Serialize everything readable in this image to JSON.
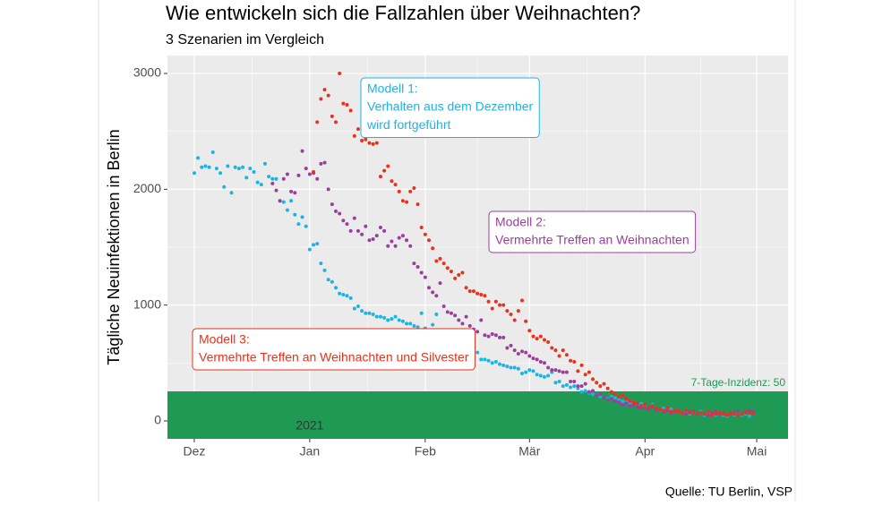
{
  "chart_data": {
    "type": "scatter",
    "title": "Wie entwickeln sich die Fallzahlen über Weihnachten?",
    "subtitle": "3 Szenarien im Vergleich",
    "y_label": "Tägliche Neuinfektionen in Berlin",
    "year_label": "2021",
    "source": "Quelle: TU Berlin, VSP",
    "grid": true,
    "minor_grid": true,
    "xlim": [
      -7.2,
      159.4
    ],
    "ylim": [
      -155,
      3155
    ],
    "yticks": [
      0,
      1000,
      2000,
      3000
    ],
    "xticks": [
      {
        "value": 0,
        "label": "Dez"
      },
      {
        "value": 31,
        "label": "Jan"
      },
      {
        "value": 62,
        "label": "Feb"
      },
      {
        "value": 90,
        "label": "Mär"
      },
      {
        "value": 121,
        "label": "Apr"
      },
      {
        "value": 151,
        "label": "Mai"
      }
    ],
    "threshold": {
      "value": 255,
      "label": "7-Tage-Inzidenz: 50",
      "color": "#1f9a55"
    },
    "x": [
      0,
      1,
      2,
      3,
      4,
      5,
      6,
      7,
      8,
      9,
      10,
      11,
      12,
      13,
      14,
      15,
      16,
      17,
      18,
      19,
      20,
      21,
      22,
      23,
      24,
      25,
      26,
      27,
      28,
      29,
      30,
      31,
      32,
      33,
      34,
      35,
      36,
      37,
      38,
      39,
      40,
      41,
      42,
      43,
      44,
      45,
      46,
      47,
      48,
      49,
      50,
      51,
      52,
      53,
      54,
      55,
      56,
      57,
      58,
      59,
      60,
      61,
      62,
      63,
      64,
      65,
      66,
      67,
      68,
      69,
      70,
      71,
      72,
      73,
      74,
      75,
      76,
      77,
      78,
      79,
      80,
      81,
      82,
      83,
      84,
      85,
      86,
      87,
      88,
      89,
      90,
      91,
      92,
      93,
      94,
      95,
      96,
      97,
      98,
      99,
      100,
      101,
      102,
      103,
      104,
      105,
      106,
      107,
      108,
      109,
      110,
      111,
      112,
      113,
      114,
      115,
      116,
      117,
      118,
      119,
      120,
      121,
      122,
      123,
      124,
      125,
      126,
      127,
      128,
      129,
      130,
      131,
      132,
      133,
      134,
      135,
      136,
      137,
      138,
      139,
      140,
      141,
      142,
      143,
      144,
      145,
      146,
      147,
      148,
      149,
      150
    ],
    "series": [
      {
        "name": "Modell 1:",
        "description": [
          "Verhalten aus dem Dezember",
          "wird fortgeführt"
        ],
        "color": "#1bb4e4",
        "values": [
          2140,
          2270,
          2190,
          2200,
          2190,
          2320,
          2180,
          2140,
          2020,
          2200,
          1970,
          2190,
          2180,
          2190,
          2100,
          2180,
          2150,
          2060,
          2040,
          2220,
          2110,
          2090,
          2090,
          1900,
          1890,
          1820,
          1900,
          1780,
          1700,
          1760,
          1680,
          1480,
          1520,
          1530,
          1360,
          1300,
          1220,
          1200,
          1150,
          1100,
          1090,
          1080,
          1060,
          970,
          990,
          950,
          930,
          930,
          920,
          900,
          900,
          890,
          870,
          880,
          900,
          870,
          860,
          840,
          840,
          820,
          810,
          930,
          800,
          780,
          830,
          920,
          760,
          740,
          700,
          660,
          640,
          620,
          610,
          650,
          590,
          600,
          590,
          530,
          530,
          520,
          500,
          510,
          490,
          480,
          470,
          460,
          460,
          450,
          410,
          420,
          440,
          430,
          400,
          390,
          380,
          390,
          420,
          330,
          340,
          300,
          310,
          290,
          300,
          280,
          250,
          260,
          240,
          230,
          220,
          210,
          200,
          190,
          210,
          200,
          180,
          170,
          160,
          150,
          160,
          140,
          150,
          130,
          120,
          140,
          110,
          100,
          110,
          90,
          100,
          80,
          90,
          70,
          80,
          60,
          70,
          60,
          80,
          50,
          60,
          70,
          50,
          60,
          50,
          40,
          60,
          50,
          70,
          50,
          60,
          40,
          60
        ]
      },
      {
        "name": "Modell 2:",
        "description": [
          "Vermehrte Treffen an Weihnachten"
        ],
        "color": "#9a3f9c",
        "values": [
          null,
          null,
          null,
          null,
          null,
          null,
          null,
          null,
          null,
          null,
          null,
          null,
          null,
          null,
          null,
          null,
          null,
          null,
          null,
          null,
          null,
          2050,
          1990,
          1900,
          2090,
          2130,
          1980,
          1970,
          2120,
          2330,
          2180,
          2130,
          2140,
          2090,
          2220,
          2230,
          2000,
          1870,
          1810,
          1790,
          1730,
          1700,
          1640,
          1750,
          1640,
          1610,
          1680,
          1560,
          1570,
          1600,
          1670,
          1640,
          1510,
          1550,
          1510,
          1580,
          1600,
          1560,
          1510,
          1360,
          1330,
          1280,
          1240,
          1150,
          1110,
          1080,
          1190,
          990,
          940,
          930,
          910,
          870,
          840,
          900,
          820,
          790,
          770,
          870,
          740,
          730,
          750,
          740,
          720,
          720,
          630,
          650,
          610,
          580,
          600,
          590,
          560,
          540,
          530,
          510,
          500,
          460,
          440,
          440,
          430,
          420,
          420,
          340,
          340,
          300,
          300,
          320,
          250,
          260,
          220,
          230,
          200,
          180,
          190,
          170,
          160,
          140,
          150,
          130,
          140,
          120,
          110,
          110,
          100,
          120,
          90,
          100,
          80,
          90,
          70,
          80,
          90,
          70,
          60,
          80,
          70,
          60,
          70,
          60,
          50,
          70,
          80,
          60,
          70,
          50,
          60,
          70,
          80,
          60,
          70,
          90,
          80
        ]
      },
      {
        "name": "Modell 3:",
        "description": [
          "Vermehrte Treffen an Weihnachten und Silvester"
        ],
        "color": "#e8321c",
        "values": [
          null,
          null,
          null,
          null,
          null,
          null,
          null,
          null,
          null,
          null,
          null,
          null,
          null,
          null,
          null,
          null,
          null,
          null,
          null,
          null,
          null,
          null,
          null,
          null,
          null,
          null,
          null,
          null,
          null,
          null,
          null,
          null,
          2150,
          2580,
          2780,
          2860,
          2810,
          2630,
          2580,
          3000,
          2740,
          2730,
          2680,
          2460,
          2520,
          2420,
          2430,
          2400,
          2390,
          2400,
          2110,
          2160,
          2200,
          2070,
          2040,
          1980,
          1900,
          1890,
          1980,
          2010,
          1870,
          1670,
          1610,
          1560,
          1490,
          1380,
          1400,
          1360,
          1320,
          1290,
          1230,
          1260,
          1280,
          1150,
          1120,
          1120,
          1100,
          1090,
          1080,
          1030,
          970,
          1030,
          1000,
          1000,
          950,
          920,
          870,
          950,
          1040,
          860,
          780,
          730,
          710,
          730,
          700,
          680,
          630,
          610,
          560,
          610,
          570,
          520,
          510,
          430,
          480,
          400,
          420,
          360,
          330,
          300,
          320,
          280,
          250,
          230,
          210,
          220,
          190,
          170,
          160,
          150,
          130,
          140,
          120,
          130,
          110,
          100,
          90,
          110,
          80,
          90,
          80,
          70,
          90,
          70,
          80,
          60,
          70,
          60,
          80,
          50,
          60,
          70,
          60,
          50,
          70,
          60,
          50,
          60,
          80,
          70,
          60
        ]
      }
    ]
  }
}
